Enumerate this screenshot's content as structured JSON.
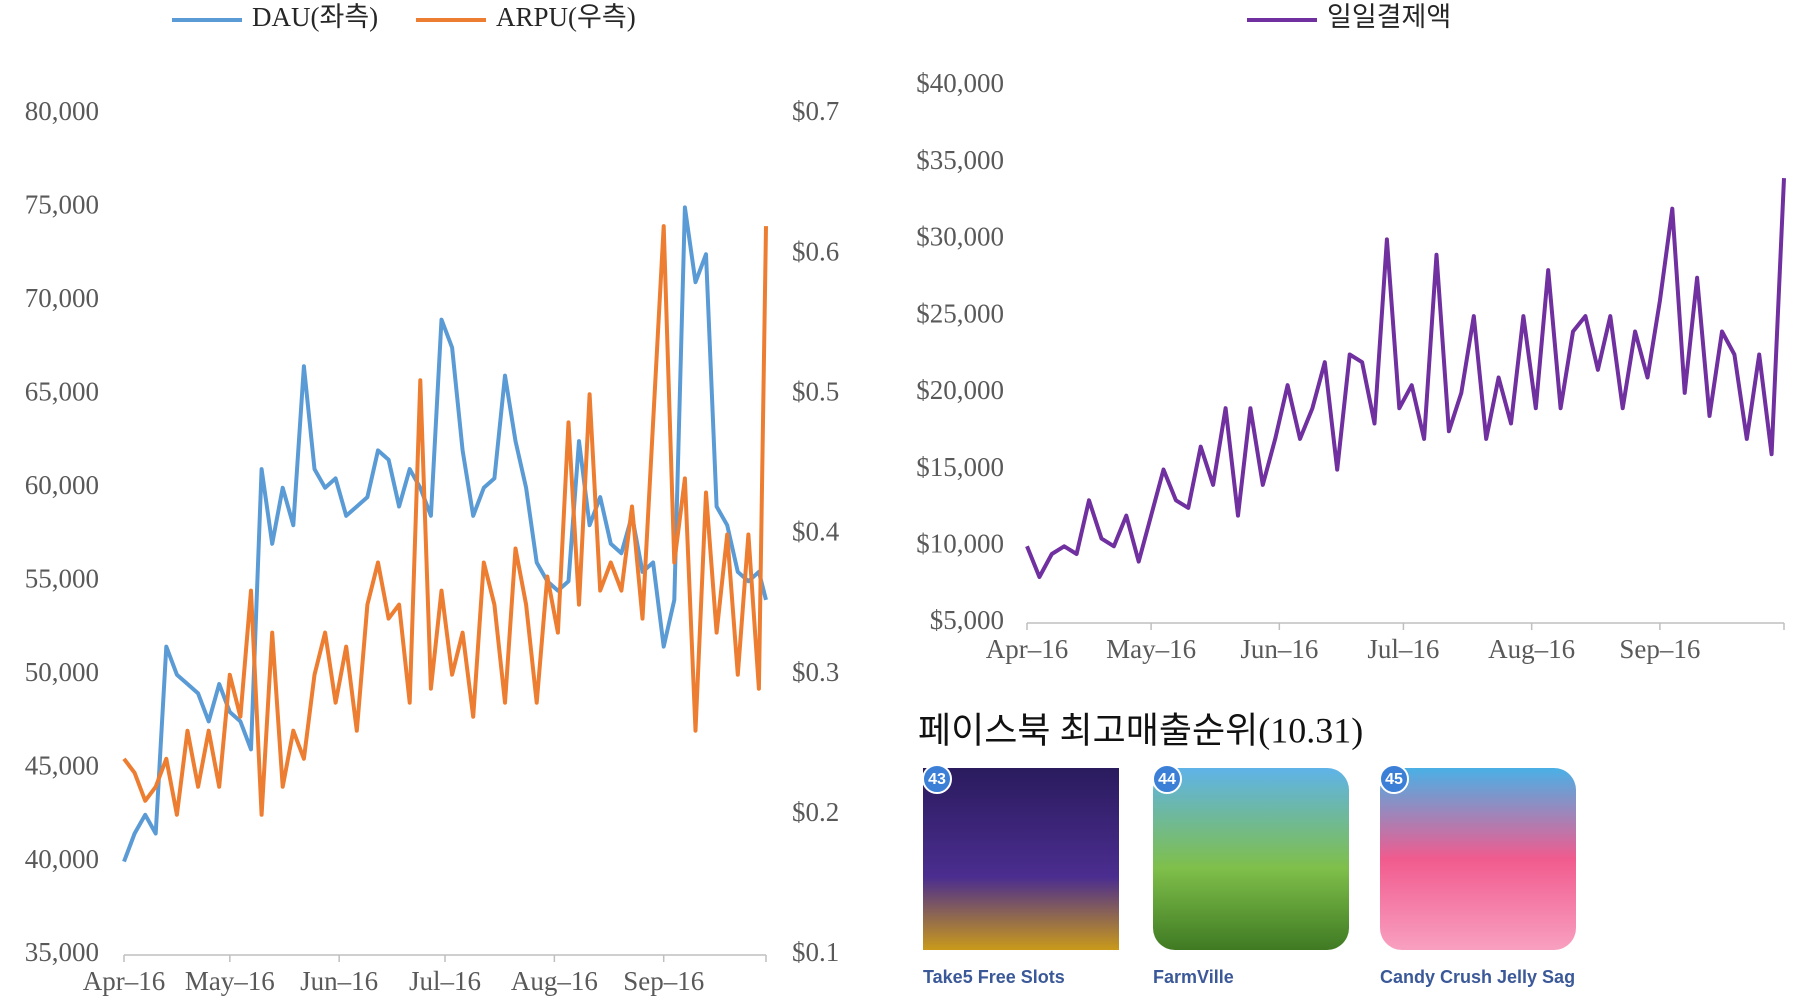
{
  "chart_data": [
    {
      "type": "line",
      "x": [
        0,
        3,
        6,
        9,
        12,
        15,
        18,
        21,
        24,
        27,
        30,
        33,
        36,
        39,
        42,
        45,
        48,
        51,
        54,
        57,
        60,
        63,
        66,
        69,
        72,
        75,
        78,
        81,
        84,
        87,
        90,
        93,
        96,
        99,
        102,
        105,
        108,
        111,
        114,
        117,
        120,
        123,
        126,
        129,
        132,
        135,
        138,
        141,
        144,
        147,
        150,
        153,
        156,
        159,
        162,
        165,
        168,
        171,
        174,
        177,
        180,
        182
      ],
      "xlim": [
        0,
        182
      ],
      "xticks": [
        {
          "value": 0,
          "label": "Apr–16"
        },
        {
          "value": 30,
          "label": "May–16"
        },
        {
          "value": 61,
          "label": "Jun–16"
        },
        {
          "value": 91,
          "label": "Jul–16"
        },
        {
          "value": 122,
          "label": "Aug–16"
        },
        {
          "value": 153,
          "label": "Sep–16"
        }
      ],
      "ylim": [
        35000,
        80000
      ],
      "yticks": [
        {
          "value": 35000,
          "label": "35,000"
        },
        {
          "value": 40000,
          "label": "40,000"
        },
        {
          "value": 45000,
          "label": "45,000"
        },
        {
          "value": 50000,
          "label": "50,000"
        },
        {
          "value": 55000,
          "label": "55,000"
        },
        {
          "value": 60000,
          "label": "60,000"
        },
        {
          "value": 65000,
          "label": "65,000"
        },
        {
          "value": 70000,
          "label": "70,000"
        },
        {
          "value": 75000,
          "label": "75,000"
        },
        {
          "value": 80000,
          "label": "80,000"
        }
      ],
      "y2lim": [
        0.1,
        0.7
      ],
      "y2ticks": [
        {
          "value": 0.1,
          "label": "$0.1"
        },
        {
          "value": 0.2,
          "label": "$0.2"
        },
        {
          "value": 0.3,
          "label": "$0.3"
        },
        {
          "value": 0.4,
          "label": "$0.4"
        },
        {
          "value": 0.5,
          "label": "$0.5"
        },
        {
          "value": 0.6,
          "label": "$0.6"
        },
        {
          "value": 0.7,
          "label": "$0.7"
        }
      ],
      "series": [
        {
          "name": "DAU(좌측)",
          "color": "#5b9bd5",
          "values": [
            40000,
            41500,
            42500,
            41500,
            51500,
            50000,
            49500,
            49000,
            47500,
            49500,
            48000,
            47500,
            46000,
            61000,
            57000,
            60000,
            58000,
            66500,
            61000,
            60000,
            60500,
            58500,
            59000,
            59500,
            62000,
            61500,
            59000,
            61000,
            60000,
            58500,
            69000,
            67500,
            62000,
            58500,
            60000,
            60500,
            66000,
            62500,
            60000,
            56000,
            55000,
            54500,
            55000,
            62500,
            58000,
            59500,
            57000,
            56500,
            58500,
            55500,
            56000,
            51500,
            54000,
            75000,
            71000,
            72500,
            59000,
            58000,
            55500,
            55000,
            55500,
            54000
          ]
        },
        {
          "name": "ARPU(우측)",
          "color": "#ed7d31",
          "axis": "y2",
          "values": [
            0.24,
            0.23,
            0.21,
            0.22,
            0.24,
            0.2,
            0.26,
            0.22,
            0.26,
            0.22,
            0.3,
            0.27,
            0.36,
            0.2,
            0.33,
            0.22,
            0.26,
            0.24,
            0.3,
            0.33,
            0.28,
            0.32,
            0.26,
            0.35,
            0.38,
            0.34,
            0.35,
            0.28,
            0.51,
            0.29,
            0.36,
            0.3,
            0.33,
            0.27,
            0.38,
            0.35,
            0.28,
            0.39,
            0.35,
            0.28,
            0.37,
            0.33,
            0.48,
            0.35,
            0.5,
            0.36,
            0.38,
            0.36,
            0.42,
            0.34,
            0.48,
            0.62,
            0.38,
            0.44,
            0.26,
            0.43,
            0.33,
            0.4,
            0.3,
            0.4,
            0.29,
            0.62
          ]
        }
      ]
    },
    {
      "type": "line",
      "x": [
        0,
        3,
        6,
        9,
        12,
        15,
        18,
        21,
        24,
        27,
        30,
        33,
        36,
        39,
        42,
        45,
        48,
        51,
        54,
        57,
        60,
        63,
        66,
        69,
        72,
        75,
        78,
        81,
        84,
        87,
        90,
        93,
        96,
        99,
        102,
        105,
        108,
        111,
        114,
        117,
        120,
        123,
        126,
        129,
        132,
        135,
        138,
        141,
        144,
        147,
        150,
        153,
        156,
        159,
        162,
        165,
        168,
        171,
        174,
        177,
        180,
        183
      ],
      "xlim": [
        0,
        183
      ],
      "xticks": [
        {
          "value": 0,
          "label": "Apr–16"
        },
        {
          "value": 30,
          "label": "May–16"
        },
        {
          "value": 61,
          "label": "Jun–16"
        },
        {
          "value": 91,
          "label": "Jul–16"
        },
        {
          "value": 122,
          "label": "Aug–16"
        },
        {
          "value": 153,
          "label": "Sep–16"
        }
      ],
      "ylim": [
        5000,
        40000
      ],
      "yticks": [
        {
          "value": 5000,
          "label": "$5,000"
        },
        {
          "value": 10000,
          "label": "$10,000"
        },
        {
          "value": 15000,
          "label": "$15,000"
        },
        {
          "value": 20000,
          "label": "$20,000"
        },
        {
          "value": 25000,
          "label": "$25,000"
        },
        {
          "value": 30000,
          "label": "$30,000"
        },
        {
          "value": 35000,
          "label": "$35,000"
        },
        {
          "value": 40000,
          "label": "$40,000"
        }
      ],
      "series": [
        {
          "name": "일일결제액",
          "color": "#7030a0",
          "values": [
            10000,
            8000,
            9500,
            10000,
            9500,
            13000,
            10500,
            10000,
            12000,
            9000,
            12000,
            15000,
            13000,
            12500,
            16500,
            14000,
            19000,
            12000,
            19000,
            14000,
            17000,
            20500,
            17000,
            19000,
            22000,
            15000,
            22500,
            22000,
            18000,
            30000,
            19000,
            20500,
            17000,
            29000,
            17500,
            20000,
            25000,
            17000,
            21000,
            18000,
            25000,
            19000,
            28000,
            19000,
            24000,
            25000,
            21500,
            25000,
            19000,
            24000,
            21000,
            26000,
            32000,
            20000,
            27500,
            18500,
            24000,
            22500,
            17000,
            22500,
            16000,
            34000
          ]
        }
      ]
    }
  ],
  "ranking": {
    "title": "페이스북 최고매출순위(10.31)",
    "apps": [
      {
        "rank": 43,
        "name": "Take5 Free Slots"
      },
      {
        "rank": 44,
        "name": "FarmVille"
      },
      {
        "rank": 45,
        "name": "Candy Crush Jelly Sag"
      }
    ]
  }
}
